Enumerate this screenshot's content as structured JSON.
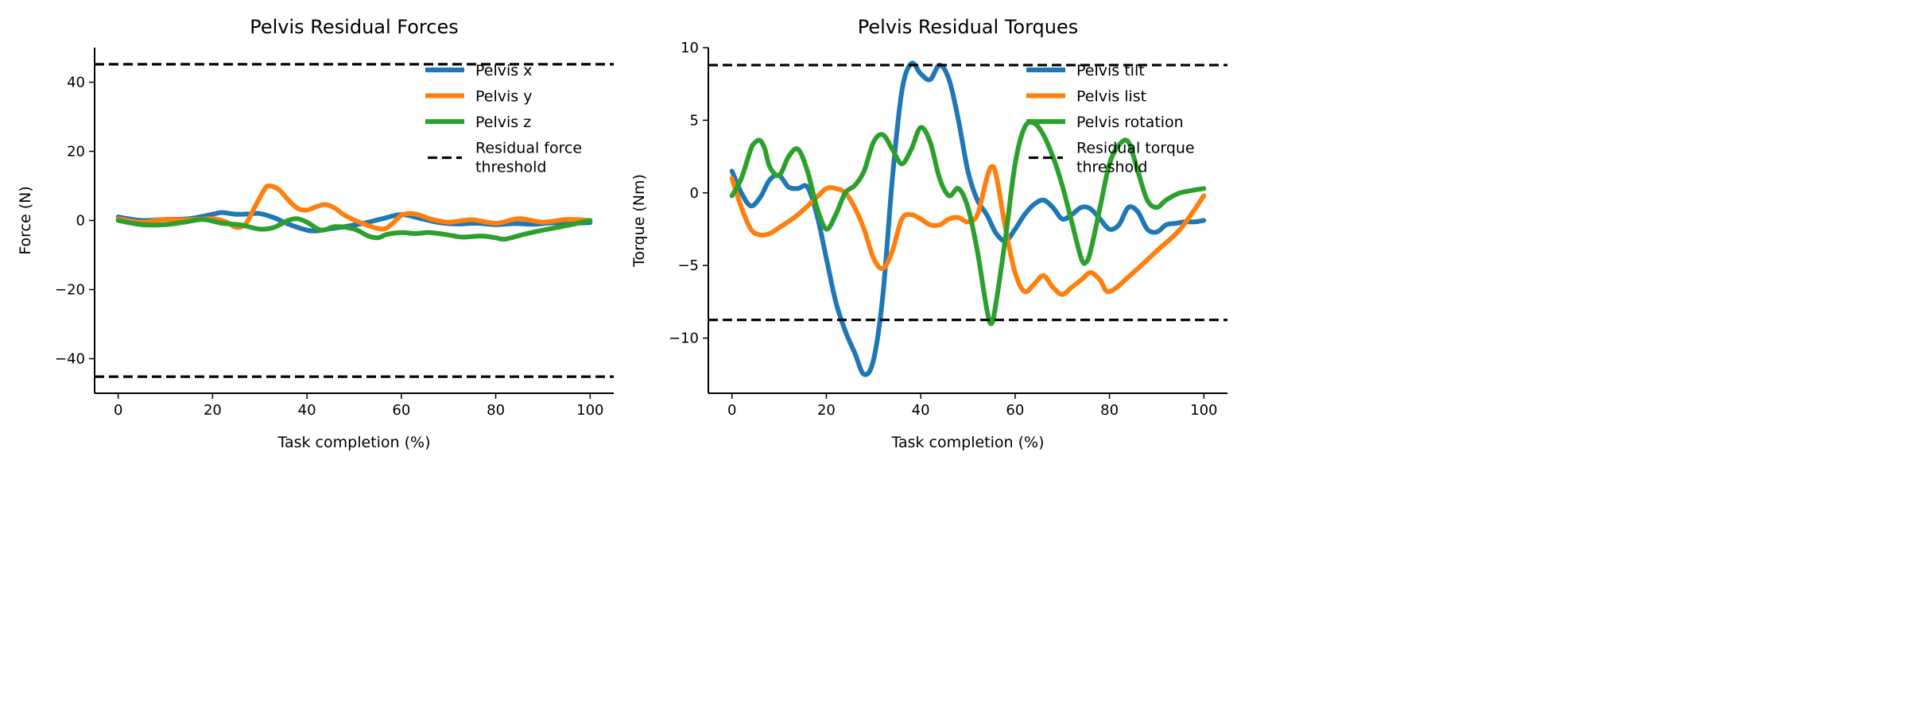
{
  "chart_data": [
    {
      "type": "line",
      "title": "Pelvis Residual Forces",
      "xlabel": "Task completion (%)",
      "ylabel": "Force (N)",
      "xlim": [
        -5,
        105
      ],
      "ylim": [
        -50,
        50
      ],
      "xticks": [
        0,
        20,
        40,
        60,
        80,
        100
      ],
      "yticks": [
        -40,
        -20,
        0,
        20,
        40
      ],
      "ytick_labels": [
        "−40",
        "−20",
        "0",
        "20",
        "40"
      ],
      "grid": false,
      "legend_position": "top-right",
      "thresholds": [
        45.2,
        -45.2
      ],
      "threshold_label": "Residual force threshold",
      "threshold_label_lines": [
        "Residual force",
        "threshold"
      ],
      "series": [
        {
          "name": "Pelvis x",
          "color": "#1f77b4",
          "x": [
            0,
            5,
            10,
            15,
            20,
            22,
            25,
            28,
            30,
            33,
            36,
            40,
            42,
            45,
            48,
            52,
            56,
            60,
            64,
            68,
            72,
            76,
            80,
            84,
            88,
            92,
            96,
            100
          ],
          "y": [
            1,
            0,
            0.3,
            0.5,
            1.8,
            2.3,
            1.8,
            1.9,
            2,
            0.8,
            -1,
            -2.8,
            -3,
            -2.4,
            -1.8,
            -0.8,
            0.5,
            1.7,
            0.6,
            -0.6,
            -1,
            -0.8,
            -1.2,
            -0.9,
            -1.1,
            -0.7,
            -0.8,
            -0.6
          ]
        },
        {
          "name": "Pelvis y",
          "color": "#ff7f0e",
          "x": [
            0,
            5,
            10,
            15,
            20,
            23,
            25,
            27,
            29,
            31,
            32,
            34,
            36,
            38,
            40,
            42,
            44,
            46,
            48,
            52,
            56,
            58,
            60,
            62,
            64,
            66,
            70,
            75,
            80,
            85,
            90,
            95,
            100
          ],
          "y": [
            0.5,
            -0.5,
            0.3,
            0.2,
            0.5,
            -0.5,
            -2,
            -1,
            4,
            9,
            10,
            9,
            6,
            3.5,
            3,
            4,
            4.6,
            3.5,
            1.5,
            -1,
            -2.5,
            -1,
            1.5,
            2,
            1.5,
            0.5,
            -0.5,
            0.2,
            -0.8,
            0.5,
            -0.5,
            0.3,
            0
          ]
        },
        {
          "name": "Pelvis z",
          "color": "#2ca02c",
          "x": [
            0,
            5,
            10,
            14,
            18,
            22,
            26,
            30,
            33,
            36,
            38,
            40,
            43,
            46,
            50,
            53,
            55,
            57,
            60,
            63,
            66,
            70,
            73,
            77,
            80,
            82,
            86,
            90,
            95,
            100
          ],
          "y": [
            0,
            -1.2,
            -1.2,
            -0.5,
            0.3,
            -0.8,
            -1.3,
            -2.5,
            -2,
            0,
            0.5,
            -0.5,
            -2.8,
            -1.8,
            -2.5,
            -4.5,
            -5,
            -4,
            -3.5,
            -3.8,
            -3.5,
            -4.2,
            -4.8,
            -4.5,
            -5,
            -5.4,
            -4,
            -2.8,
            -1.5,
            0
          ]
        }
      ]
    },
    {
      "type": "line",
      "title": "Pelvis Residual Torques",
      "xlabel": "Task completion (%)",
      "ylabel": "Torque (Nm)",
      "xlim": [
        -5,
        105
      ],
      "ylim": [
        -13.8,
        10
      ],
      "xticks": [
        0,
        20,
        40,
        60,
        80,
        100
      ],
      "yticks": [
        -10,
        -5,
        0,
        5,
        10
      ],
      "ytick_labels": [
        "−10",
        "−5",
        "0",
        "5",
        "10"
      ],
      "grid": false,
      "legend_position": "top-right",
      "thresholds": [
        8.8,
        -8.75
      ],
      "threshold_label": "Residual torque threshold",
      "threshold_label_lines": [
        "Residual torque",
        "threshold"
      ],
      "series": [
        {
          "name": "Pelvis tilt",
          "color": "#1f77b4",
          "x": [
            0,
            2,
            4,
            6,
            8,
            10,
            12,
            14,
            16,
            18,
            20,
            22,
            24,
            26,
            28,
            30,
            32,
            34,
            36,
            38,
            40,
            42,
            44,
            46,
            48,
            50,
            52,
            54,
            56,
            58,
            60,
            62,
            64,
            66,
            68,
            70,
            72,
            74,
            76,
            78,
            80,
            82,
            84,
            86,
            88,
            90,
            92,
            94,
            96,
            98,
            100
          ],
          "y": [
            1.5,
            0,
            -0.9,
            -0.3,
            0.9,
            1.2,
            0.4,
            0.3,
            0.4,
            -1.5,
            -4.5,
            -7.5,
            -9.5,
            -11,
            -12.5,
            -11.5,
            -7,
            1,
            7,
            8.9,
            8.2,
            7.8,
            8.8,
            7.8,
            5,
            1.5,
            -0.5,
            -1.5,
            -2.8,
            -3.3,
            -2.5,
            -1.5,
            -0.8,
            -0.5,
            -1,
            -1.8,
            -1.5,
            -1.0,
            -1.1,
            -1.8,
            -2.5,
            -2.2,
            -1,
            -1.3,
            -2.5,
            -2.7,
            -2.2,
            -2.1,
            -2.0,
            -2,
            -1.9
          ]
        },
        {
          "name": "Pelvis list",
          "color": "#ff7f0e",
          "x": [
            0,
            2,
            4,
            6,
            8,
            10,
            14,
            18,
            20,
            22,
            24,
            26,
            28,
            30,
            32,
            34,
            36,
            38,
            40,
            42,
            44,
            46,
            48,
            50,
            52,
            54,
            55,
            56,
            58,
            60,
            62,
            64,
            66,
            68,
            70,
            72,
            74,
            76,
            78,
            80,
            85,
            90,
            95,
            100
          ],
          "y": [
            1,
            -1,
            -2.5,
            -2.9,
            -2.8,
            -2.4,
            -1.5,
            -0.3,
            0.3,
            0.3,
            0,
            -1,
            -2.5,
            -4.5,
            -5.2,
            -4,
            -1.8,
            -1.5,
            -1.8,
            -2.2,
            -2.2,
            -1.8,
            -1.7,
            -2,
            -1.5,
            1,
            1.8,
            1.2,
            -2.5,
            -5.5,
            -6.8,
            -6.3,
            -5.7,
            -6.5,
            -7,
            -6.5,
            -6,
            -5.5,
            -6,
            -6.8,
            -5.5,
            -4,
            -2.5,
            -0.2
          ]
        },
        {
          "name": "Pelvis rotation",
          "color": "#2ca02c",
          "x": [
            0,
            2,
            4,
            5,
            6,
            7,
            8,
            10,
            12,
            14,
            16,
            18,
            20,
            22,
            24,
            26,
            28,
            30,
            32,
            34,
            36,
            38,
            40,
            42,
            44,
            46,
            48,
            50,
            52,
            54,
            55,
            56,
            58,
            60,
            62,
            64,
            66,
            68,
            70,
            72,
            74,
            75,
            76,
            78,
            80,
            82,
            84,
            86,
            88,
            90,
            92,
            95,
            100
          ],
          "y": [
            -0.2,
            1,
            3,
            3.5,
            3.6,
            3,
            1.8,
            1.2,
            2.5,
            3,
            1.5,
            -1,
            -2.5,
            -1.5,
            0,
            0.5,
            1.5,
            3.5,
            4,
            3,
            2,
            3,
            4.5,
            3.5,
            1,
            -0.2,
            0.3,
            -1,
            -4,
            -8,
            -9,
            -7.5,
            -3,
            2,
            4.5,
            4.8,
            4,
            2.5,
            0.5,
            -2,
            -4.5,
            -4.8,
            -4,
            -1,
            2,
            3.3,
            3.5,
            1.5,
            -0.5,
            -1,
            -0.5,
            0,
            0.3
          ]
        }
      ]
    }
  ]
}
